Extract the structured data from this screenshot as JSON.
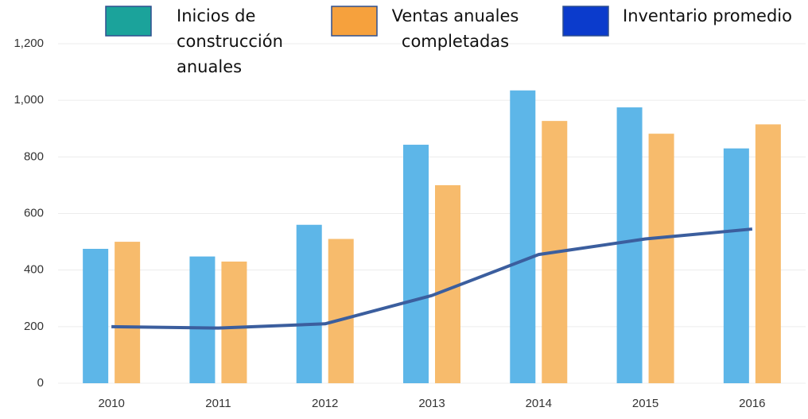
{
  "chart_data": {
    "type": "bar",
    "categories": [
      "2010",
      "2011",
      "2012",
      "2013",
      "2014",
      "2015",
      "2016"
    ],
    "series": [
      {
        "name": "Inicios de construcción anuales",
        "type": "bar",
        "color": "#5db6e8",
        "legend_color": "#1ba39b",
        "values": [
          475,
          448,
          560,
          843,
          1035,
          975,
          830
        ]
      },
      {
        "name": "Ventas anuales completadas",
        "type": "bar",
        "color": "#f7bb6c",
        "legend_color": "#f6a13d",
        "values": [
          500,
          430,
          510,
          700,
          927,
          882,
          915
        ]
      },
      {
        "name": "Inventario promedio",
        "type": "line",
        "color": "#3b5e9e",
        "legend_color": "#0b3bcc",
        "values": [
          200,
          195,
          210,
          310,
          455,
          510,
          545
        ]
      }
    ],
    "ylim": [
      0,
      1200
    ],
    "yticks": [
      0,
      200,
      400,
      600,
      800,
      {
        "value": 1000,
        "label": "1,000"
      },
      {
        "value": 1200,
        "label": "1,200"
      }
    ],
    "grid": true
  }
}
